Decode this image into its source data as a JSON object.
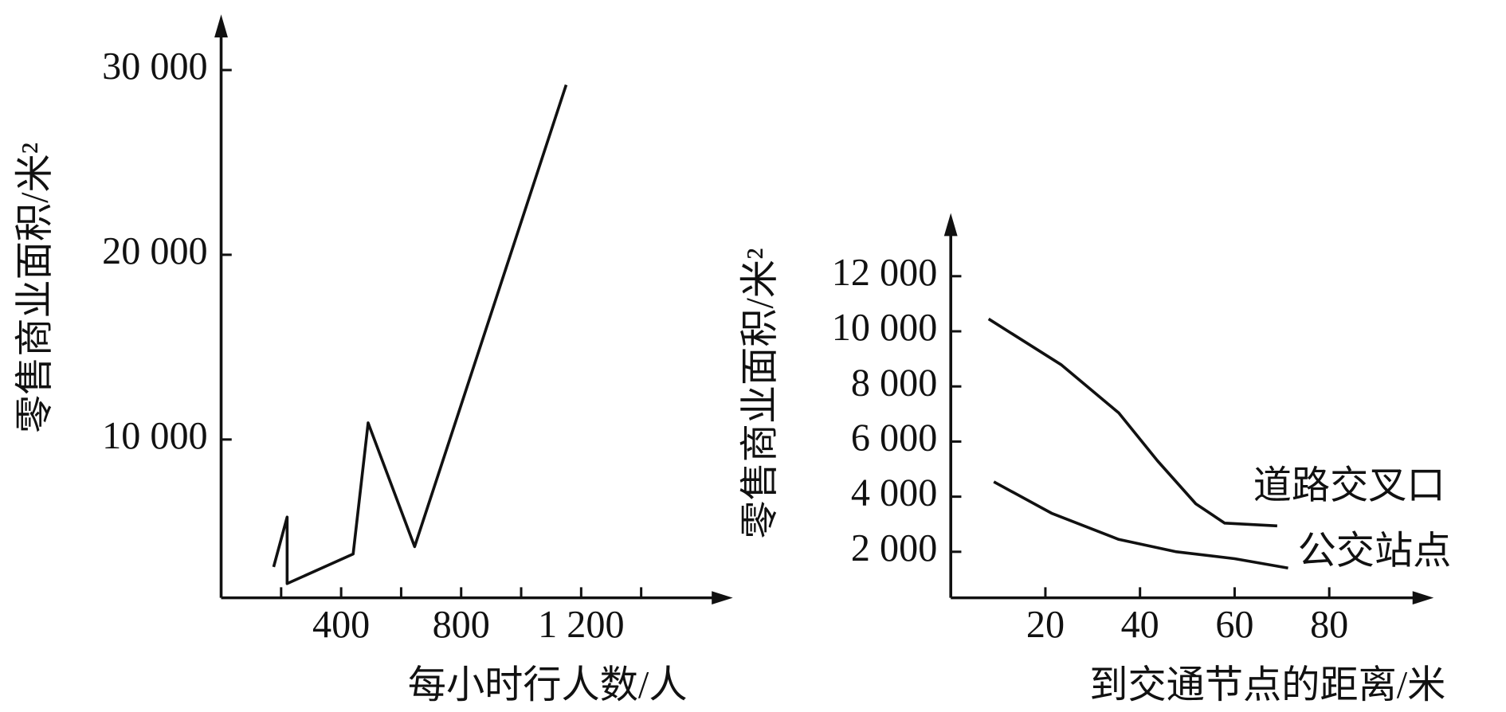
{
  "chart_data": [
    {
      "type": "line",
      "ylabel": "零售商业面积/米²",
      "xlabel": "每小时行人数/人",
      "xlim": [
        0,
        1600
      ],
      "ylim": [
        1430,
        32000
      ],
      "xticks": [
        400,
        800,
        {
          "value": 1200,
          "label": "1 200"
        }
      ],
      "x_minor_ticks": [
        200,
        600,
        1000,
        1400
      ],
      "yticks": [
        {
          "value": 10000,
          "label": "10 000"
        },
        {
          "value": 20000,
          "label": "20 000"
        },
        {
          "value": 30000,
          "label": "30 000"
        }
      ],
      "series": [
        {
          "color": "#111111",
          "x": [
            175,
            220,
            220,
            440,
            490,
            645,
            1150
          ],
          "values": [
            3100,
            5800,
            2200,
            3800,
            10900,
            4200,
            29200
          ]
        }
      ]
    },
    {
      "type": "line",
      "ylabel": "零售商业面积/米²",
      "xlabel": "到交通节点的距离/米",
      "xlim": [
        0,
        97
      ],
      "ylim": [
        330,
        13700
      ],
      "xticks": [
        20,
        40,
        60,
        80
      ],
      "yticks": [
        {
          "value": 2000,
          "label": "2 000"
        },
        {
          "value": 4000,
          "label": "4 000"
        },
        {
          "value": 6000,
          "label": "6 000"
        },
        {
          "value": 8000,
          "label": "8 000"
        },
        {
          "value": 10000,
          "label": "10 000"
        },
        {
          "value": 12000,
          "label": "12 000"
        }
      ],
      "series": [
        {
          "name": "道路交叉口",
          "color": "#111111",
          "x": [
            8,
            23.4,
            35.5,
            43.7,
            51.8,
            57.9,
            69
          ],
          "values": [
            10450,
            8780,
            7040,
            5300,
            3740,
            3040,
            2940
          ]
        },
        {
          "name": "公交站点",
          "color": "#111111",
          "x": [
            9.1,
            21.3,
            35.5,
            47.7,
            60,
            71.3
          ],
          "values": [
            4540,
            3400,
            2450,
            2000,
            1750,
            1410
          ]
        }
      ]
    }
  ]
}
